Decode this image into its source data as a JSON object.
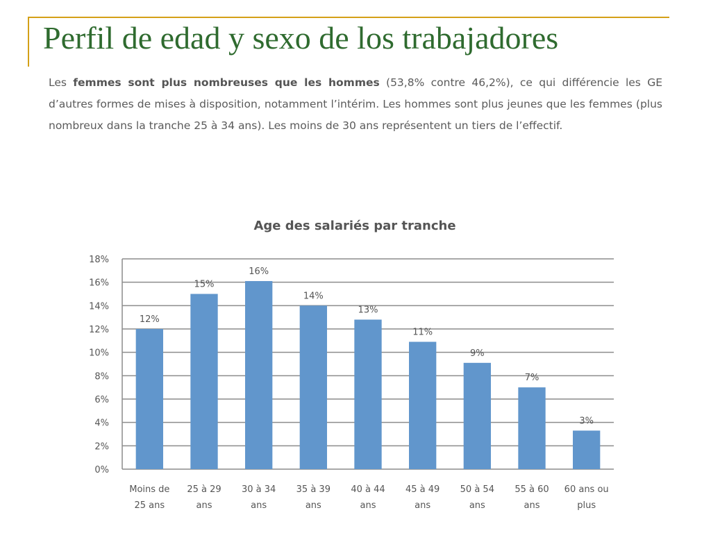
{
  "slide": {
    "title": "Perfil de edad y sexo de los trabajadores",
    "intro": {
      "p1": "Les ",
      "b1": "femmes sont plus nombreuses que les hommes",
      "p2": " (53,8% contre 46,2%), ce qui différencie les GE d’autres formes de mises à disposition, notamment l’intérim. Les hommes sont plus jeunes que les femmes (plus nombreux dans la tranche 25 à 34 ans). Les moins de 30 ans représentent un tiers de l’effectif."
    }
  },
  "chart_data": {
    "type": "bar",
    "title": "Age des salariés par tranche",
    "xlabel": "",
    "ylabel": "",
    "categories": [
      [
        "Moins de",
        "25 ans"
      ],
      [
        "25 à 29",
        "ans"
      ],
      [
        "30 à 34",
        "ans"
      ],
      [
        "35 à 39",
        "ans"
      ],
      [
        "40 à 44",
        "ans"
      ],
      [
        "45 à 49",
        "ans"
      ],
      [
        "50 à 54",
        "ans"
      ],
      [
        "55 à 60",
        "ans"
      ],
      [
        "60 ans ou",
        "plus"
      ]
    ],
    "values": [
      12,
      15,
      16.1,
      14,
      12.8,
      10.9,
      9.1,
      7,
      3.3
    ],
    "data_labels": [
      "12%",
      "15%",
      "16%",
      "14%",
      "13%",
      "11%",
      "9%",
      "7%",
      "3%"
    ],
    "ylim": [
      0,
      18
    ],
    "yticks": [
      0,
      2,
      4,
      6,
      8,
      10,
      12,
      14,
      16,
      18
    ],
    "ytick_labels": [
      "0%",
      "2%",
      "4%",
      "6%",
      "8%",
      "10%",
      "12%",
      "14%",
      "16%",
      "18%"
    ],
    "grid": true,
    "bar_color": "#6196cc",
    "grid_color": "#8c8c8c"
  }
}
